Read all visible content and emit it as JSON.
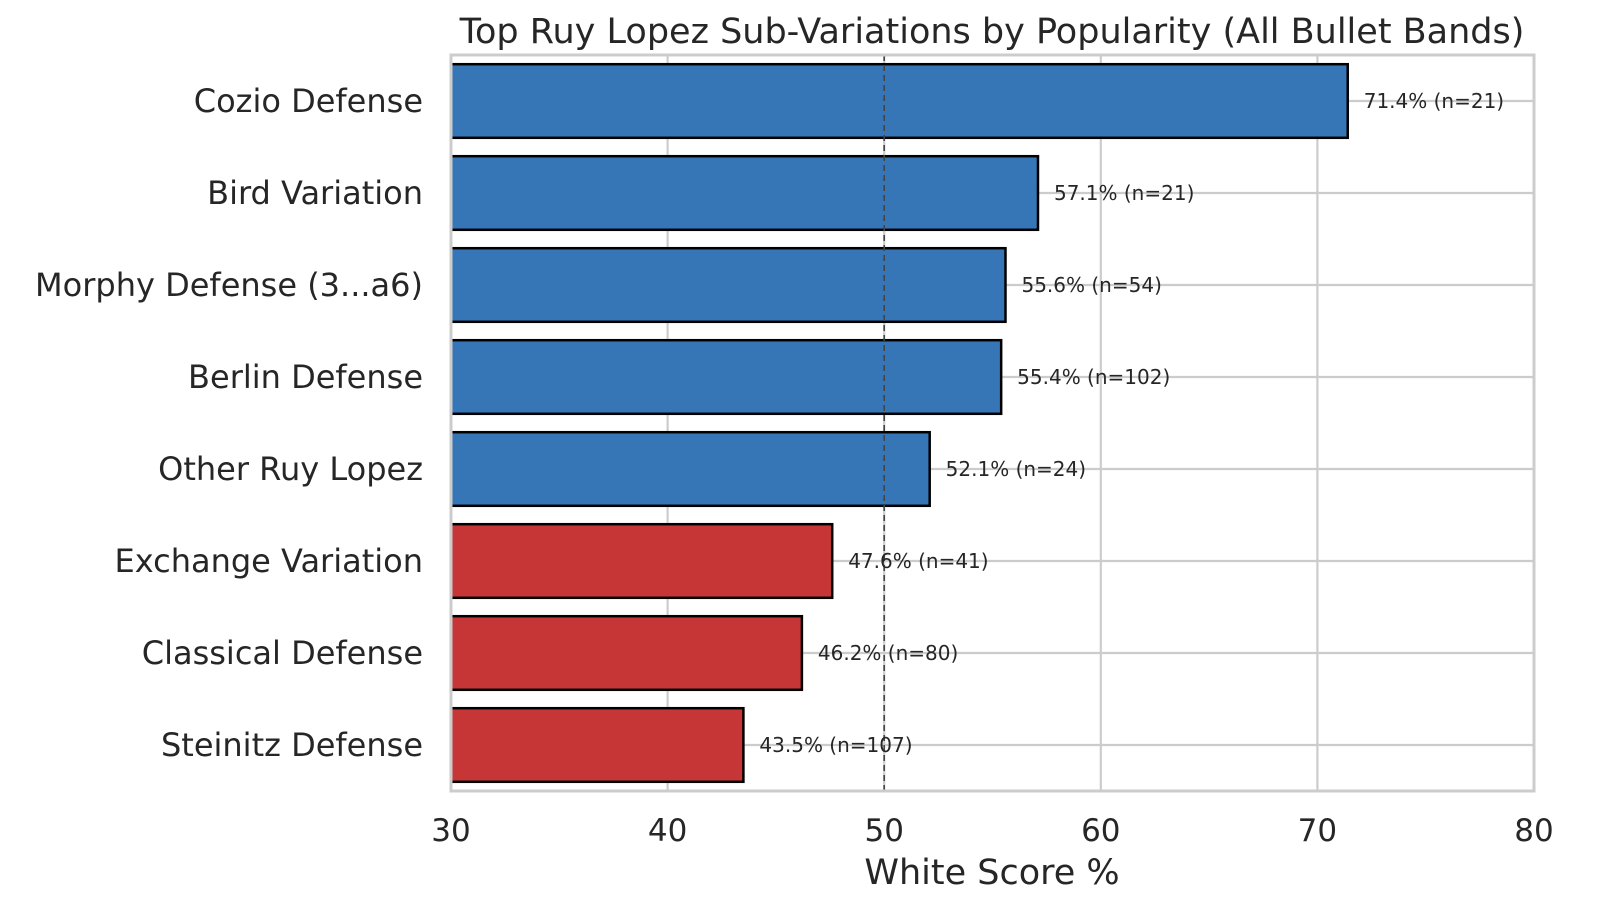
{
  "chart_data": {
    "type": "bar",
    "orientation": "horizontal",
    "title": "Top Ruy Lopez Sub-Variations by Popularity (All Bullet Bands)",
    "xlabel": "White Score %",
    "ylabel": "",
    "xlim": [
      30,
      80
    ],
    "xticks": [
      30,
      40,
      50,
      60,
      70,
      80
    ],
    "reference_line": 50,
    "grid": true,
    "colors": {
      "above_50": "#3776b6",
      "below_50": "#c63637",
      "edge": "#000000",
      "grid": "#cccccc",
      "text": "#262626"
    },
    "categories": [
      "Cozio Defense",
      "Bird Variation",
      "Morphy Defense (3...a6)",
      "Berlin Defense",
      "Other Ruy Lopez",
      "Exchange Variation",
      "Classical Defense",
      "Steinitz Defense"
    ],
    "values": [
      71.4,
      57.1,
      55.6,
      55.4,
      52.1,
      47.6,
      46.2,
      43.5
    ],
    "n": [
      21,
      21,
      54,
      102,
      24,
      41,
      80,
      107
    ],
    "data_labels": [
      "71.4% (n=21)",
      "57.1% (n=21)",
      "55.6% (n=54)",
      "55.4% (n=102)",
      "52.1% (n=24)",
      "47.6% (n=41)",
      "46.2% (n=80)",
      "43.5% (n=107)"
    ]
  }
}
